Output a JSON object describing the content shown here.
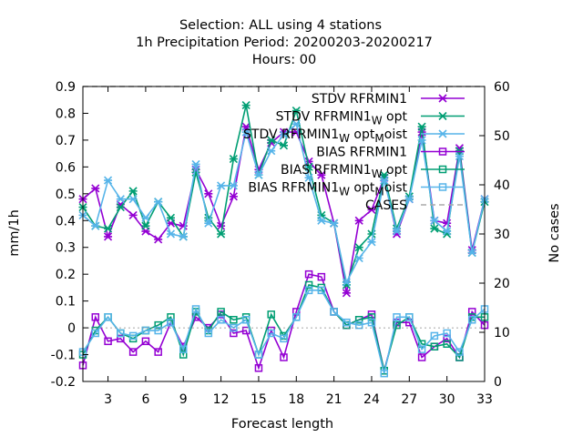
{
  "chart_data": {
    "type": "line",
    "title_lines": [
      "Selection: ALL using     4 stations",
      "1h Precipitation   Period: 20200203-20200217",
      "Hours:  00"
    ],
    "xlabel": "Forecast length",
    "ylabel": "mm/1h",
    "y2label": "No cases",
    "xlim": [
      1,
      33
    ],
    "ylim": [
      -0.2,
      0.9
    ],
    "y2lim": [
      0,
      60
    ],
    "xticks": [
      "3",
      "6",
      "9",
      "12",
      "15",
      "18",
      "21",
      "24",
      "27",
      "30",
      "33"
    ],
    "yticks": [
      "-0.2",
      "-0.1",
      "0",
      "0.1",
      "0.2",
      "0.3",
      "0.4",
      "0.5",
      "0.6",
      "0.7",
      "0.8",
      "0.9"
    ],
    "y2ticks": [
      "0",
      "10",
      "20",
      "30",
      "40",
      "50",
      "60"
    ],
    "grid": false,
    "legend_position": "top-right",
    "x": [
      1,
      2,
      3,
      4,
      5,
      6,
      7,
      8,
      9,
      10,
      11,
      12,
      13,
      14,
      15,
      16,
      17,
      18,
      19,
      20,
      21,
      22,
      23,
      24,
      25,
      26,
      27,
      28,
      29,
      30,
      31,
      32,
      33
    ],
    "series": [
      {
        "name": "STDV RFRMIN1",
        "color": "#9400d3",
        "marker": "x",
        "axis": "y",
        "values": [
          0.48,
          0.52,
          0.34,
          0.46,
          0.42,
          0.36,
          0.33,
          0.39,
          0.38,
          0.59,
          0.5,
          0.38,
          0.49,
          0.75,
          0.59,
          0.69,
          0.73,
          0.73,
          0.62,
          0.57,
          0.39,
          0.13,
          0.4,
          0.44,
          0.56,
          0.35,
          0.48,
          0.73,
          0.4,
          0.39,
          0.67,
          0.29,
          0.48
        ]
      },
      {
        "name": "STDV RFRMIN1 W opt",
        "color": "#009e73",
        "marker": "x",
        "axis": "y",
        "values": [
          0.45,
          0.38,
          0.37,
          0.45,
          0.51,
          0.38,
          0.47,
          0.41,
          0.34,
          0.58,
          0.41,
          0.35,
          0.63,
          0.83,
          0.57,
          0.7,
          0.68,
          0.81,
          0.6,
          0.42,
          0.39,
          0.16,
          0.3,
          0.35,
          0.57,
          0.37,
          0.49,
          0.75,
          0.37,
          0.35,
          0.66,
          0.28,
          0.47
        ]
      },
      {
        "name": "STDV RFRMIN1 W opt M oist",
        "color": "#56b4e9",
        "marker": "x",
        "axis": "y",
        "values": [
          0.42,
          0.38,
          0.55,
          0.48,
          0.48,
          0.41,
          0.47,
          0.35,
          0.34,
          0.61,
          0.39,
          0.53,
          0.53,
          0.73,
          0.57,
          0.66,
          0.72,
          0.76,
          0.56,
          0.4,
          0.39,
          0.17,
          0.26,
          0.32,
          0.55,
          0.36,
          0.48,
          0.7,
          0.4,
          0.36,
          0.64,
          0.28,
          0.48
        ]
      },
      {
        "name": "BIAS RFRMIN1",
        "color": "#9400d3",
        "marker": "square",
        "axis": "y",
        "values": [
          -0.14,
          0.04,
          -0.05,
          -0.04,
          -0.09,
          -0.05,
          -0.09,
          0.02,
          -0.07,
          0.04,
          0.0,
          0.05,
          -0.02,
          -0.01,
          -0.15,
          -0.01,
          -0.11,
          0.06,
          0.2,
          0.19,
          0.06,
          0.01,
          0.03,
          0.05,
          -0.16,
          0.02,
          0.02,
          -0.11,
          -0.07,
          -0.04,
          -0.11,
          0.06,
          0.01
        ]
      },
      {
        "name": "BIAS RFRMIN1 W opt",
        "color": "#009e73",
        "marker": "square",
        "axis": "y",
        "values": [
          -0.1,
          -0.01,
          0.04,
          -0.02,
          -0.04,
          -0.01,
          0.01,
          0.04,
          -0.1,
          0.06,
          -0.01,
          0.06,
          0.03,
          0.04,
          -0.1,
          0.05,
          -0.03,
          0.04,
          0.16,
          0.15,
          0.06,
          0.01,
          0.03,
          0.04,
          -0.16,
          0.01,
          0.04,
          -0.06,
          -0.07,
          -0.06,
          -0.11,
          0.04,
          0.04
        ]
      },
      {
        "name": "BIAS RFRMIN1 W opt M oist",
        "color": "#56b4e9",
        "marker": "square",
        "axis": "y",
        "values": [
          -0.09,
          -0.02,
          0.04,
          -0.02,
          -0.03,
          -0.01,
          -0.01,
          0.02,
          -0.08,
          0.07,
          -0.02,
          0.03,
          0.0,
          0.03,
          -0.1,
          -0.02,
          -0.04,
          0.04,
          0.14,
          0.14,
          0.06,
          0.02,
          0.01,
          0.02,
          -0.17,
          0.04,
          0.04,
          -0.08,
          -0.03,
          -0.02,
          -0.09,
          0.03,
          0.07
        ]
      },
      {
        "name": "CASES",
        "color": "#aaaaaa",
        "dashed": true,
        "axis": "y2",
        "values": [
          60,
          60,
          60,
          60,
          60,
          60,
          60,
          60,
          60,
          60,
          60,
          60,
          60,
          60,
          60,
          60,
          60,
          60,
          60,
          60,
          60,
          60,
          60,
          60,
          60,
          60,
          60,
          60,
          60,
          60,
          60,
          60,
          60
        ]
      }
    ]
  },
  "legend": [
    {
      "base": "STDV RFRMIN1",
      "parts": []
    },
    {
      "base": "STDV RFRMIN1",
      "parts": [
        {
          "sub": "W"
        },
        {
          "txt": " opt"
        }
      ]
    },
    {
      "base": "STDV RFRMIN1",
      "parts": [
        {
          "sub": "W"
        },
        {
          "txt": " opt"
        },
        {
          "sub": "M"
        },
        {
          "txt": "oist"
        }
      ]
    },
    {
      "base": "BIAS RFRMIN1",
      "parts": []
    },
    {
      "base": "BIAS RFRMIN1",
      "parts": [
        {
          "sub": "W"
        },
        {
          "txt": " opt"
        }
      ]
    },
    {
      "base": "BIAS RFRMIN1",
      "parts": [
        {
          "sub": "W"
        },
        {
          "txt": " opt"
        },
        {
          "sub": "M"
        },
        {
          "txt": "oist"
        }
      ]
    },
    {
      "base": "CASES",
      "parts": []
    }
  ]
}
